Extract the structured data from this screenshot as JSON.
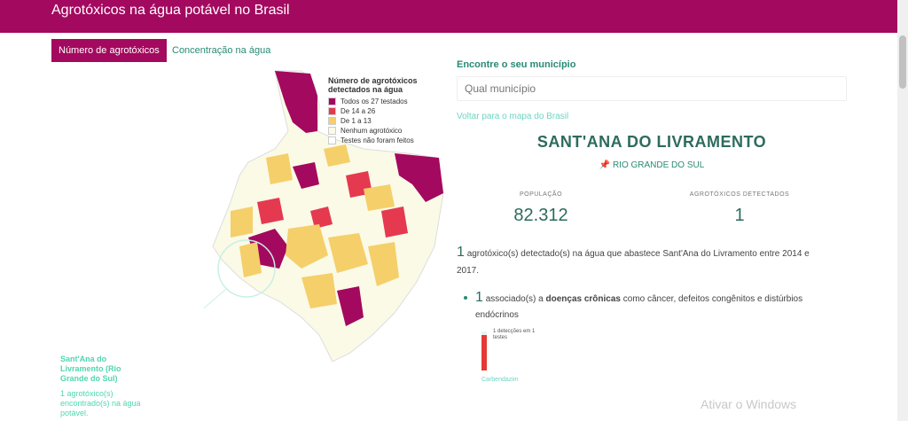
{
  "header": {
    "title": "Agrotóxicos na água potável no Brasil"
  },
  "tabs": [
    {
      "label": "Número de agrotóxicos"
    },
    {
      "label": "Concentração na água"
    }
  ],
  "legend": {
    "title": "Número de agrotóxicos detectados na água",
    "items": [
      {
        "label": "Todos os 27 testados",
        "color": "#a3095f"
      },
      {
        "label": "De 14 a 26",
        "color": "#e53950"
      },
      {
        "label": "De 1 a 13",
        "color": "#f5cf6a"
      },
      {
        "label": "Nenhum agrotóxico",
        "color": "#fafae6"
      },
      {
        "label": "Testes não foram feitos",
        "color": "#ffffff"
      }
    ]
  },
  "callout": {
    "title": "Sant'Ana do Livramento (Rio Grande do Sul)",
    "description": "1 agrotóxico(s) encontrado(s) na água potável."
  },
  "finder": {
    "label": "Encontre o seu município",
    "placeholder": "Qual município",
    "back_link": "Voltar para o mapa do Brasil"
  },
  "city": {
    "name": "SANT'ANA DO LIVRAMENTO",
    "state": "RIO GRANDE DO SUL"
  },
  "stats": {
    "population_label": "POPULAÇÃO",
    "population_value": "82.312",
    "detected_label": "AGROTÓXICOS DETECTADOS",
    "detected_value": "1"
  },
  "summary": {
    "count": "1",
    "text": "agrotóxico(s) detectado(s) na água que abastece Sant'Ana do Livramento entre 2014 e 2017."
  },
  "bullet": {
    "count": "1",
    "prefix": "associado(s) a",
    "bold": "doenças crônicas",
    "suffix": "como câncer, defeitos congênitos e distúrbios endócrinos"
  },
  "minichart": {
    "label": "1 detecções em 1 testes",
    "xlabel": "Carbendazim",
    "detections": 1,
    "tests": 1
  },
  "watermark": {
    "text": "Ativar o Windows"
  }
}
